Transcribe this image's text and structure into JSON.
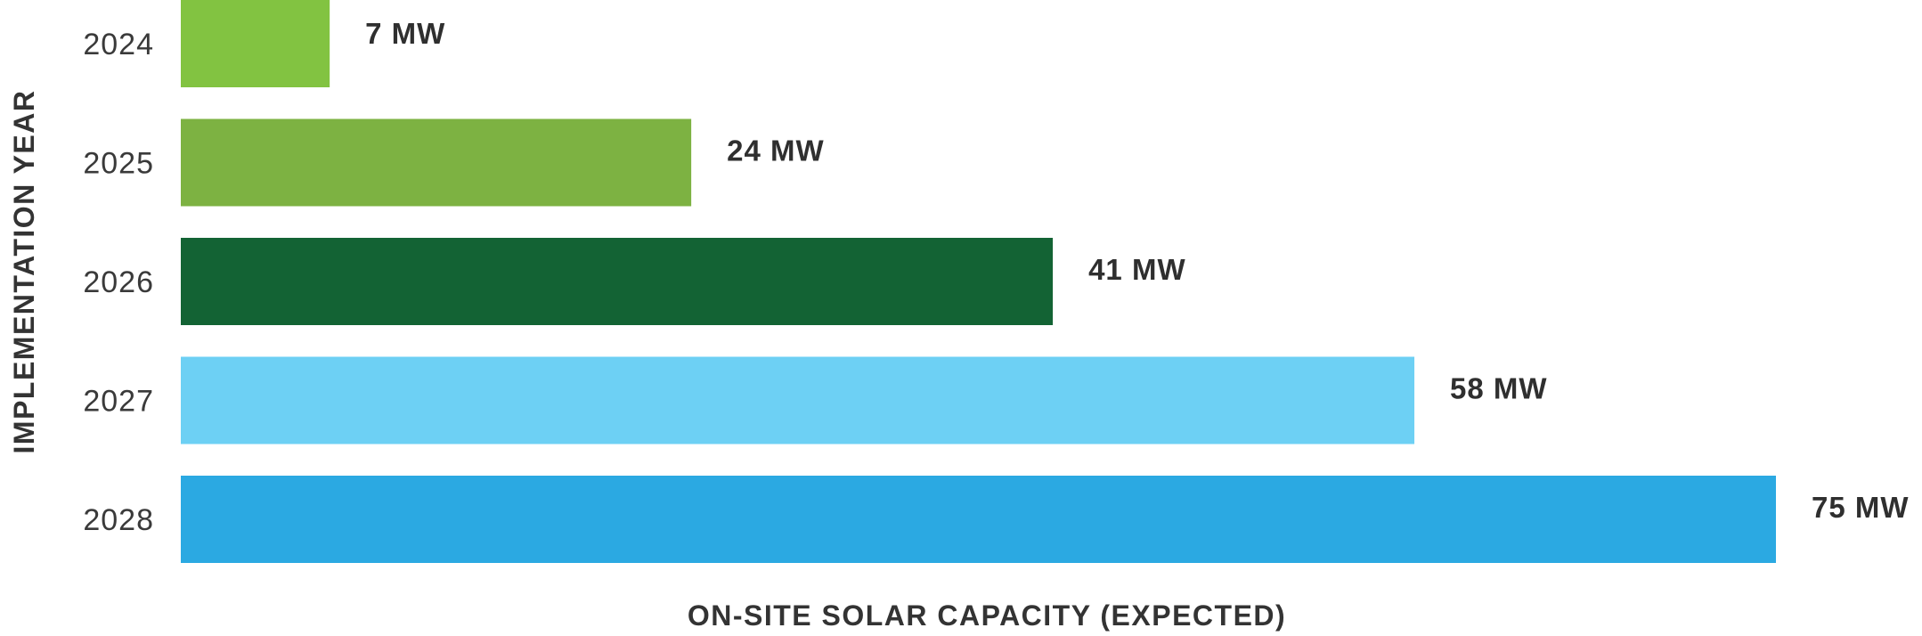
{
  "chart_data": {
    "type": "bar",
    "orientation": "horizontal",
    "title": "",
    "xlabel": "ON-SITE SOLAR CAPACITY (EXPECTED)",
    "ylabel": "IMPLEMENTATION YEAR",
    "categories": [
      "2024",
      "2025",
      "2026",
      "2027",
      "2028"
    ],
    "values": [
      7,
      24,
      41,
      58,
      75
    ],
    "data_labels": [
      "7 MW",
      "24 MW",
      "41 MW",
      "58 MW",
      "75 MW"
    ],
    "unit": "MW",
    "colors": [
      "#82C341",
      "#7DB242",
      "#136334",
      "#6DD0F4",
      "#2BA9E2"
    ],
    "xlim": [
      0,
      75
    ],
    "grid": false,
    "legend": "none"
  }
}
